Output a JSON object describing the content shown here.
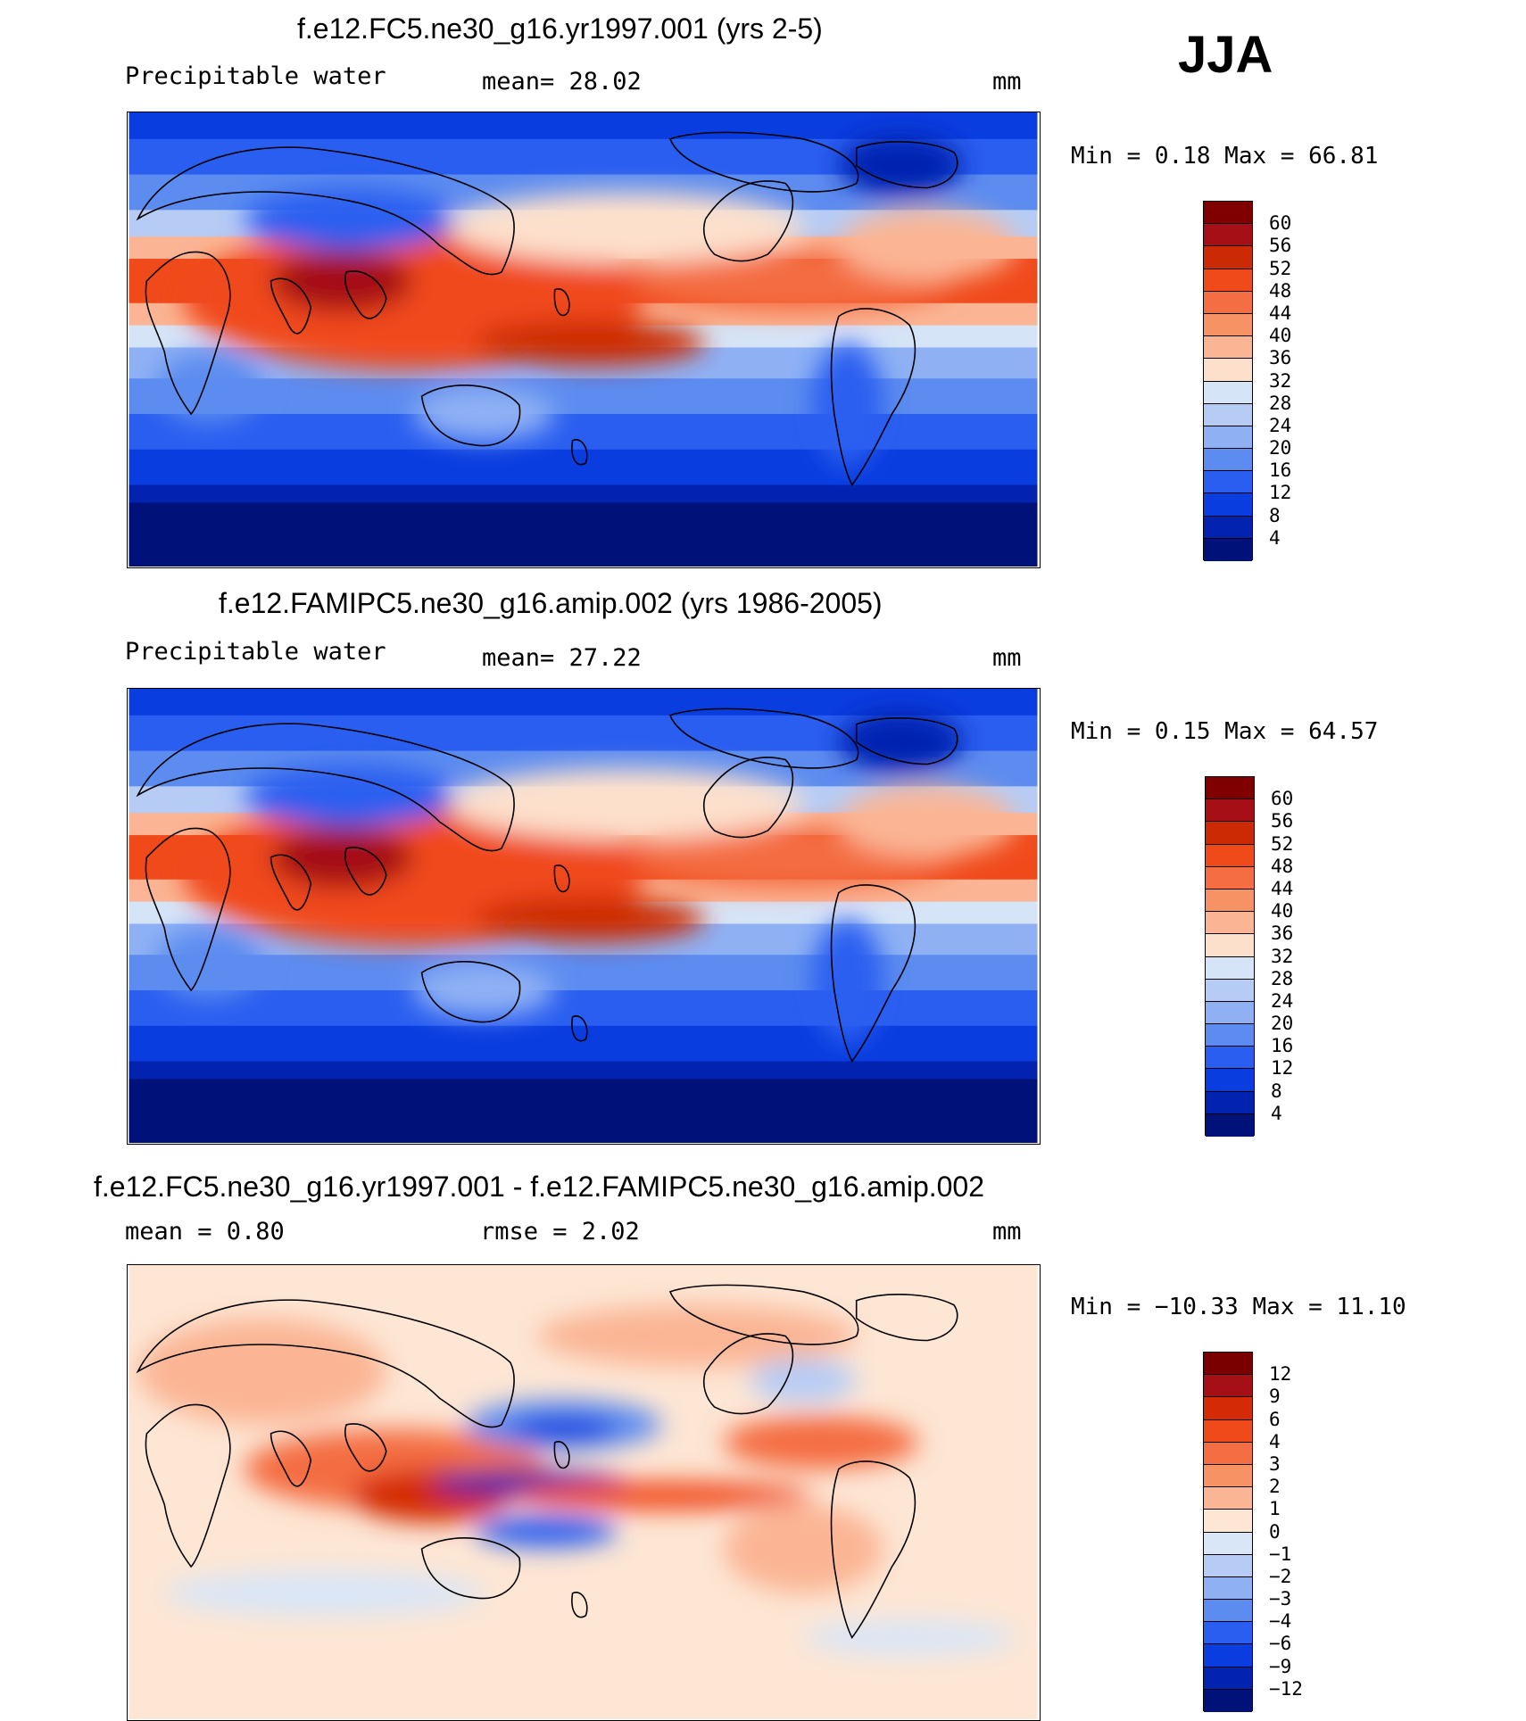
{
  "season": "JJA",
  "panels": [
    {
      "title": "f.e12.FC5.ne30_g16.yr1997.001 (yrs 2-5)",
      "left_label": "Precipitable  water",
      "center_label": "mean=   28.02",
      "units": "mm",
      "stats": "Min  =    0.18  Max  =    66.81",
      "colorbar_labels": [
        "60",
        "56",
        "52",
        "48",
        "44",
        "40",
        "36",
        "32",
        "28",
        "24",
        "20",
        "16",
        "12",
        "8",
        "4"
      ],
      "colorbar_colors": [
        "#800000",
        "#a50f15",
        "#cb2a04",
        "#f04a1b",
        "#f46d43",
        "#f79264",
        "#fbb594",
        "#fde0cc",
        "#d6e4f7",
        "#b6ccf5",
        "#8fb1f4",
        "#5c8cf0",
        "#2a5ef0",
        "#0a3de0",
        "#0222b0",
        "#00127a"
      ]
    },
    {
      "title": "f.e12.FAMIPC5.ne30_g16.amip.002 (yrs 1986-2005)",
      "left_label": "Precipitable  water",
      "center_label": "mean=   27.22",
      "units": "mm",
      "stats": "Min  =    0.15  Max  =    64.57",
      "colorbar_labels": [
        "60",
        "56",
        "52",
        "48",
        "44",
        "40",
        "36",
        "32",
        "28",
        "24",
        "20",
        "16",
        "12",
        "8",
        "4"
      ],
      "colorbar_colors": [
        "#800000",
        "#a50f15",
        "#cb2a04",
        "#f04a1b",
        "#f46d43",
        "#f79264",
        "#fbb594",
        "#fde0cc",
        "#d6e4f7",
        "#b6ccf5",
        "#8fb1f4",
        "#5c8cf0",
        "#2a5ef0",
        "#0a3de0",
        "#0222b0",
        "#00127a"
      ]
    },
    {
      "title": "f.e12.FC5.ne30_g16.yr1997.001 - f.e12.FAMIPC5.ne30_g16.amip.002",
      "left_label": "mean  =    0.80",
      "center_label": "rmse  =    2.02",
      "units": "mm",
      "stats": "Min  = −10.33  Max  =    11.10",
      "colorbar_labels": [
        "12",
        "9",
        "6",
        "4",
        "3",
        "2",
        "1",
        "0",
        "−1",
        "−2",
        "−3",
        "−4",
        "−6",
        "−9",
        "−12"
      ],
      "colorbar_colors": [
        "#7a0000",
        "#a50f15",
        "#d42a06",
        "#f04a1b",
        "#f46d43",
        "#f79264",
        "#fbb594",
        "#fde6d4",
        "#d9e6f8",
        "#b6ccf5",
        "#8fb1f4",
        "#5c8cf0",
        "#2a5ef0",
        "#0a3de0",
        "#0222b0",
        "#00127a"
      ]
    }
  ]
}
